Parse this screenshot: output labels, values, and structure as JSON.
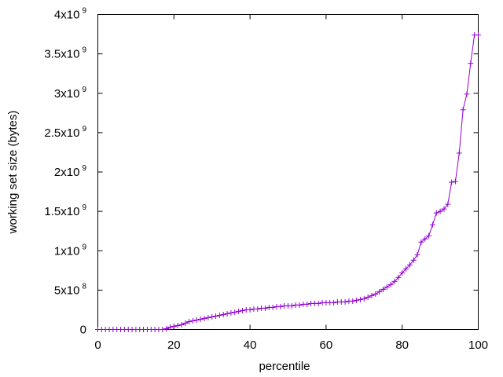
{
  "chart_data": {
    "type": "line",
    "xlabel": "percentile",
    "ylabel": "working set size (bytes)",
    "xlim": [
      0,
      100
    ],
    "ylim": [
      0,
      4000000000
    ],
    "grid": false,
    "legend": "none",
    "series_color": "#9400d3",
    "x_ticks": [
      {
        "value": 0,
        "label": "0"
      },
      {
        "value": 20,
        "label": "20"
      },
      {
        "value": 40,
        "label": "40"
      },
      {
        "value": 60,
        "label": "60"
      },
      {
        "value": 80,
        "label": "80"
      },
      {
        "value": 100,
        "label": "100"
      }
    ],
    "y_ticks": [
      {
        "value": 0,
        "mantissa": "0",
        "exponent": ""
      },
      {
        "value": 500000000,
        "mantissa": "5x10",
        "exponent": "8"
      },
      {
        "value": 1000000000,
        "mantissa": "1x10",
        "exponent": "9"
      },
      {
        "value": 1500000000,
        "mantissa": "1.5x10",
        "exponent": "9"
      },
      {
        "value": 2000000000,
        "mantissa": "2x10",
        "exponent": "9"
      },
      {
        "value": 2500000000,
        "mantissa": "2.5x10",
        "exponent": "9"
      },
      {
        "value": 3000000000,
        "mantissa": "3x10",
        "exponent": "9"
      },
      {
        "value": 3500000000,
        "mantissa": "3.5x10",
        "exponent": "9"
      },
      {
        "value": 4000000000,
        "mantissa": "4x10",
        "exponent": "9"
      }
    ],
    "series": [
      {
        "x": [
          0,
          1,
          2,
          3,
          4,
          5,
          6,
          7,
          8,
          9,
          10,
          11,
          12,
          13,
          14,
          15,
          16,
          17,
          18,
          19,
          20,
          21,
          22,
          23,
          24,
          25,
          26,
          27,
          28,
          29,
          30,
          31,
          32,
          33,
          34,
          35,
          36,
          37,
          38,
          39,
          40,
          41,
          42,
          43,
          44,
          45,
          46,
          47,
          48,
          49,
          50,
          51,
          52,
          53,
          54,
          55,
          56,
          57,
          58,
          59,
          60,
          61,
          62,
          63,
          64,
          65,
          66,
          67,
          68,
          69,
          70,
          71,
          72,
          73,
          74,
          75,
          76,
          77,
          78,
          79,
          80,
          81,
          82,
          83,
          84,
          85,
          86,
          87,
          88,
          89,
          90,
          91,
          92,
          93,
          94,
          95,
          96,
          97,
          98,
          99,
          100
        ],
        "y": [
          0,
          0,
          0,
          0,
          0,
          0,
          0,
          0,
          0,
          0,
          0,
          0,
          0,
          0,
          0,
          0,
          0,
          0,
          10000000,
          30000000,
          40000000,
          50000000,
          60000000,
          80000000,
          100000000,
          110000000,
          120000000,
          130000000,
          140000000,
          150000000,
          160000000,
          170000000,
          180000000,
          190000000,
          200000000,
          210000000,
          220000000,
          230000000,
          240000000,
          250000000,
          250000000,
          260000000,
          260000000,
          270000000,
          270000000,
          280000000,
          280000000,
          290000000,
          290000000,
          300000000,
          300000000,
          300000000,
          310000000,
          310000000,
          320000000,
          320000000,
          330000000,
          330000000,
          330000000,
          340000000,
          340000000,
          340000000,
          340000000,
          350000000,
          350000000,
          350000000,
          360000000,
          360000000,
          370000000,
          380000000,
          390000000,
          410000000,
          430000000,
          450000000,
          480000000,
          510000000,
          540000000,
          570000000,
          610000000,
          660000000,
          720000000,
          770000000,
          820000000,
          880000000,
          950000000,
          1110000000,
          1150000000,
          1190000000,
          1330000000,
          1480000000,
          1500000000,
          1530000000,
          1590000000,
          1870000000,
          1880000000,
          2240000000,
          2790000000,
          2990000000,
          3380000000,
          3740000000,
          3740000000
        ]
      }
    ]
  }
}
